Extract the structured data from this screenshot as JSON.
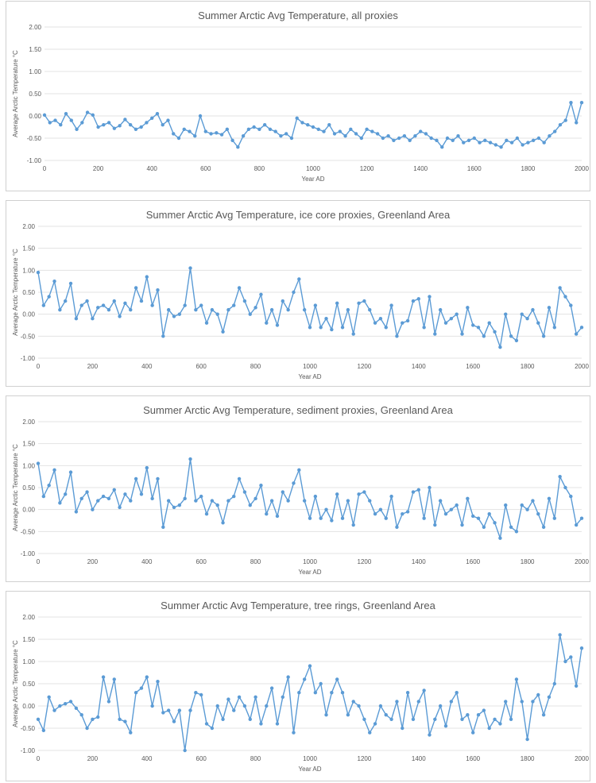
{
  "chart_data": [
    {
      "type": "line",
      "title": "Summer Arctic Avg Temperature, all proxies",
      "xlabel": "Year AD",
      "ylabel": "Average Arctic Temperature °C",
      "xlim": [
        0,
        2000
      ],
      "ylim": [
        -1.0,
        2.0
      ],
      "xticks": [
        "0",
        "200",
        "400",
        "600",
        "800",
        "1000",
        "1200",
        "1400",
        "1600",
        "1800",
        "2000"
      ],
      "yticks": [
        "-1.00",
        "-0.50",
        "0.00",
        "0.50",
        "1.00",
        "1.50",
        "2.00"
      ],
      "series": [
        {
          "color": "#5b9bd5",
          "x": [
            0,
            20,
            40,
            60,
            80,
            100,
            120,
            140,
            160,
            180,
            200,
            220,
            240,
            260,
            280,
            300,
            320,
            340,
            360,
            380,
            400,
            420,
            440,
            460,
            480,
            500,
            520,
            540,
            560,
            580,
            600,
            620,
            640,
            660,
            680,
            700,
            720,
            740,
            760,
            780,
            800,
            820,
            840,
            860,
            880,
            900,
            920,
            940,
            960,
            980,
            1000,
            1020,
            1040,
            1060,
            1080,
            1100,
            1120,
            1140,
            1160,
            1180,
            1200,
            1220,
            1240,
            1260,
            1280,
            1300,
            1320,
            1340,
            1360,
            1380,
            1400,
            1420,
            1440,
            1460,
            1480,
            1500,
            1520,
            1540,
            1560,
            1580,
            1600,
            1620,
            1640,
            1660,
            1680,
            1700,
            1720,
            1740,
            1760,
            1780,
            1800,
            1820,
            1840,
            1860,
            1880,
            1900,
            1920,
            1940,
            1960,
            1980,
            2000
          ],
          "y": [
            0.02,
            -0.15,
            -0.1,
            -0.2,
            0.05,
            -0.1,
            -0.3,
            -0.15,
            0.08,
            0.02,
            -0.25,
            -0.2,
            -0.15,
            -0.28,
            -0.22,
            -0.08,
            -0.2,
            -0.3,
            -0.25,
            -0.15,
            -0.05,
            0.05,
            -0.2,
            -0.1,
            -0.4,
            -0.5,
            -0.3,
            -0.35,
            -0.45,
            0.0,
            -0.35,
            -0.4,
            -0.38,
            -0.42,
            -0.3,
            -0.55,
            -0.7,
            -0.45,
            -0.3,
            -0.25,
            -0.3,
            -0.2,
            -0.3,
            -0.35,
            -0.45,
            -0.4,
            -0.5,
            -0.05,
            -0.15,
            -0.2,
            -0.25,
            -0.3,
            -0.35,
            -0.2,
            -0.4,
            -0.35,
            -0.45,
            -0.3,
            -0.4,
            -0.5,
            -0.3,
            -0.35,
            -0.4,
            -0.5,
            -0.45,
            -0.55,
            -0.5,
            -0.45,
            -0.55,
            -0.45,
            -0.35,
            -0.4,
            -0.5,
            -0.55,
            -0.7,
            -0.5,
            -0.55,
            -0.45,
            -0.6,
            -0.55,
            -0.5,
            -0.6,
            -0.55,
            -0.6,
            -0.65,
            -0.7,
            -0.55,
            -0.6,
            -0.5,
            -0.65,
            -0.6,
            -0.55,
            -0.5,
            -0.6,
            -0.45,
            -0.35,
            -0.2,
            -0.1,
            0.3,
            -0.15,
            0.3
          ]
        }
      ]
    },
    {
      "type": "line",
      "title": "Summer Arctic Avg Temperature, ice core proxies, Greenland Area",
      "xlabel": "Year AD",
      "ylabel": "Average Arctic Temperature °C",
      "xlim": [
        0,
        2000
      ],
      "ylim": [
        -1.0,
        2.0
      ],
      "xticks": [
        "0",
        "200",
        "400",
        "600",
        "800",
        "1000",
        "1200",
        "1400",
        "1600",
        "1800",
        "2000"
      ],
      "yticks": [
        "-1.00",
        "-0.50",
        "0.00",
        "0.50",
        "1.00",
        "1.50",
        "2.00"
      ],
      "series": [
        {
          "color": "#5b9bd5",
          "x": [
            0,
            20,
            40,
            60,
            80,
            100,
            120,
            140,
            160,
            180,
            200,
            220,
            240,
            260,
            280,
            300,
            320,
            340,
            360,
            380,
            400,
            420,
            440,
            460,
            480,
            500,
            520,
            540,
            560,
            580,
            600,
            620,
            640,
            660,
            680,
            700,
            720,
            740,
            760,
            780,
            800,
            820,
            840,
            860,
            880,
            900,
            920,
            940,
            960,
            980,
            1000,
            1020,
            1040,
            1060,
            1080,
            1100,
            1120,
            1140,
            1160,
            1180,
            1200,
            1220,
            1240,
            1260,
            1280,
            1300,
            1320,
            1340,
            1360,
            1380,
            1400,
            1420,
            1440,
            1460,
            1480,
            1500,
            1520,
            1540,
            1560,
            1580,
            1600,
            1620,
            1640,
            1660,
            1680,
            1700,
            1720,
            1740,
            1760,
            1780,
            1800,
            1820,
            1840,
            1860,
            1880,
            1900,
            1920,
            1940,
            1960,
            1980,
            2000
          ],
          "y": [
            0.95,
            0.2,
            0.4,
            0.75,
            0.1,
            0.3,
            0.7,
            -0.1,
            0.2,
            0.3,
            -0.1,
            0.15,
            0.2,
            0.1,
            0.3,
            -0.05,
            0.25,
            0.1,
            0.6,
            0.3,
            0.85,
            0.2,
            0.55,
            -0.5,
            0.1,
            -0.05,
            0.0,
            0.2,
            1.05,
            0.1,
            0.2,
            -0.2,
            0.1,
            0.0,
            -0.4,
            0.1,
            0.2,
            0.6,
            0.3,
            0.0,
            0.15,
            0.45,
            -0.2,
            0.1,
            -0.25,
            0.3,
            0.1,
            0.5,
            0.8,
            0.1,
            -0.3,
            0.2,
            -0.3,
            -0.1,
            -0.35,
            0.25,
            -0.3,
            0.1,
            -0.45,
            0.25,
            0.3,
            0.1,
            -0.2,
            -0.1,
            -0.3,
            0.2,
            -0.5,
            -0.2,
            -0.15,
            0.3,
            0.35,
            -0.3,
            0.4,
            -0.45,
            0.1,
            -0.2,
            -0.1,
            0.0,
            -0.45,
            0.15,
            -0.25,
            -0.3,
            -0.5,
            -0.2,
            -0.4,
            -0.75,
            0.0,
            -0.5,
            -0.6,
            0.0,
            -0.1,
            0.1,
            -0.2,
            -0.5,
            0.15,
            -0.3,
            0.6,
            0.4,
            0.2,
            -0.45,
            -0.3
          ]
        }
      ]
    },
    {
      "type": "line",
      "title": "Summer Arctic Avg Temperature, sediment proxies, Greenland Area",
      "xlabel": "Year AD",
      "ylabel": "Average Arctic Temperature °C",
      "xlim": [
        0,
        2000
      ],
      "ylim": [
        -1.0,
        2.0
      ],
      "xticks": [
        "0",
        "200",
        "400",
        "600",
        "800",
        "1000",
        "1200",
        "1400",
        "1600",
        "1800",
        "2000"
      ],
      "yticks": [
        "-1.00",
        "-0.50",
        "0.00",
        "0.50",
        "1.00",
        "1.50",
        "2.00"
      ],
      "series": [
        {
          "color": "#5b9bd5",
          "x": [
            0,
            20,
            40,
            60,
            80,
            100,
            120,
            140,
            160,
            180,
            200,
            220,
            240,
            260,
            280,
            300,
            320,
            340,
            360,
            380,
            400,
            420,
            440,
            460,
            480,
            500,
            520,
            540,
            560,
            580,
            600,
            620,
            640,
            660,
            680,
            700,
            720,
            740,
            760,
            780,
            800,
            820,
            840,
            860,
            880,
            900,
            920,
            940,
            960,
            980,
            1000,
            1020,
            1040,
            1060,
            1080,
            1100,
            1120,
            1140,
            1160,
            1180,
            1200,
            1220,
            1240,
            1260,
            1280,
            1300,
            1320,
            1340,
            1360,
            1380,
            1400,
            1420,
            1440,
            1460,
            1480,
            1500,
            1520,
            1540,
            1560,
            1580,
            1600,
            1620,
            1640,
            1660,
            1680,
            1700,
            1720,
            1740,
            1760,
            1780,
            1800,
            1820,
            1840,
            1860,
            1880,
            1900,
            1920,
            1940,
            1960,
            1980,
            2000
          ],
          "y": [
            1.05,
            0.3,
            0.55,
            0.9,
            0.15,
            0.35,
            0.85,
            -0.05,
            0.25,
            0.4,
            0.0,
            0.2,
            0.3,
            0.25,
            0.45,
            0.05,
            0.35,
            0.2,
            0.7,
            0.35,
            0.95,
            0.25,
            0.7,
            -0.4,
            0.2,
            0.05,
            0.1,
            0.25,
            1.15,
            0.2,
            0.3,
            -0.1,
            0.2,
            0.1,
            -0.3,
            0.2,
            0.3,
            0.7,
            0.4,
            0.1,
            0.25,
            0.55,
            -0.1,
            0.2,
            -0.15,
            0.4,
            0.2,
            0.6,
            0.9,
            0.2,
            -0.2,
            0.3,
            -0.2,
            0.0,
            -0.25,
            0.35,
            -0.2,
            0.2,
            -0.35,
            0.35,
            0.4,
            0.2,
            -0.1,
            0.0,
            -0.2,
            0.3,
            -0.4,
            -0.1,
            -0.05,
            0.4,
            0.45,
            -0.2,
            0.5,
            -0.35,
            0.2,
            -0.1,
            0.0,
            0.1,
            -0.35,
            0.25,
            -0.15,
            -0.2,
            -0.4,
            -0.1,
            -0.3,
            -0.65,
            0.1,
            -0.4,
            -0.5,
            0.1,
            0.0,
            0.2,
            -0.1,
            -0.4,
            0.25,
            -0.2,
            0.75,
            0.5,
            0.3,
            -0.35,
            -0.2
          ]
        }
      ]
    },
    {
      "type": "line",
      "title": "Summer Arctic Avg Temperature, tree rings, Greenland Area",
      "xlabel": "Year AD",
      "ylabel": "Average Arctic Temperature °C",
      "xlim": [
        0,
        2000
      ],
      "ylim": [
        -1.0,
        2.0
      ],
      "xticks": [
        "0",
        "200",
        "400",
        "600",
        "800",
        "1000",
        "1200",
        "1400",
        "1600",
        "1800",
        "2000"
      ],
      "yticks": [
        "-1.00",
        "-0.50",
        "0.00",
        "0.50",
        "1.00",
        "1.50",
        "2.00"
      ],
      "series": [
        {
          "color": "#5b9bd5",
          "x": [
            0,
            20,
            40,
            60,
            80,
            100,
            120,
            140,
            160,
            180,
            200,
            220,
            240,
            260,
            280,
            300,
            320,
            340,
            360,
            380,
            400,
            420,
            440,
            460,
            480,
            500,
            520,
            540,
            560,
            580,
            600,
            620,
            640,
            660,
            680,
            700,
            720,
            740,
            760,
            780,
            800,
            820,
            840,
            860,
            880,
            900,
            920,
            940,
            960,
            980,
            1000,
            1020,
            1040,
            1060,
            1080,
            1100,
            1120,
            1140,
            1160,
            1180,
            1200,
            1220,
            1240,
            1260,
            1280,
            1300,
            1320,
            1340,
            1360,
            1380,
            1400,
            1420,
            1440,
            1460,
            1480,
            1500,
            1520,
            1540,
            1560,
            1580,
            1600,
            1620,
            1640,
            1660,
            1680,
            1700,
            1720,
            1740,
            1760,
            1780,
            1800,
            1820,
            1840,
            1860,
            1880,
            1900,
            1920,
            1940,
            1960,
            1980,
            2000
          ],
          "y": [
            -0.3,
            -0.55,
            0.2,
            -0.1,
            0.0,
            0.05,
            0.1,
            -0.05,
            -0.2,
            -0.5,
            -0.3,
            -0.25,
            0.65,
            0.1,
            0.6,
            -0.3,
            -0.35,
            -0.6,
            0.3,
            0.4,
            0.65,
            0.0,
            0.55,
            -0.15,
            -0.1,
            -0.35,
            -0.1,
            -1.0,
            -0.1,
            0.3,
            0.25,
            -0.4,
            -0.5,
            0.0,
            -0.3,
            0.15,
            -0.1,
            0.2,
            0.0,
            -0.3,
            0.2,
            -0.4,
            0.0,
            0.4,
            -0.4,
            0.2,
            0.65,
            -0.6,
            0.3,
            0.6,
            0.9,
            0.3,
            0.5,
            -0.2,
            0.3,
            0.6,
            0.3,
            -0.2,
            0.1,
            0.0,
            -0.3,
            -0.6,
            -0.4,
            0.0,
            -0.2,
            -0.3,
            0.1,
            -0.5,
            0.3,
            -0.3,
            0.1,
            0.35,
            -0.65,
            -0.3,
            0.0,
            -0.45,
            0.1,
            0.3,
            -0.3,
            -0.2,
            -0.6,
            -0.2,
            -0.1,
            -0.5,
            -0.3,
            -0.4,
            0.1,
            -0.3,
            0.6,
            0.1,
            -0.75,
            0.1,
            0.25,
            -0.2,
            0.2,
            0.5,
            1.6,
            1.0,
            1.1,
            0.45,
            1.3
          ]
        }
      ]
    }
  ]
}
